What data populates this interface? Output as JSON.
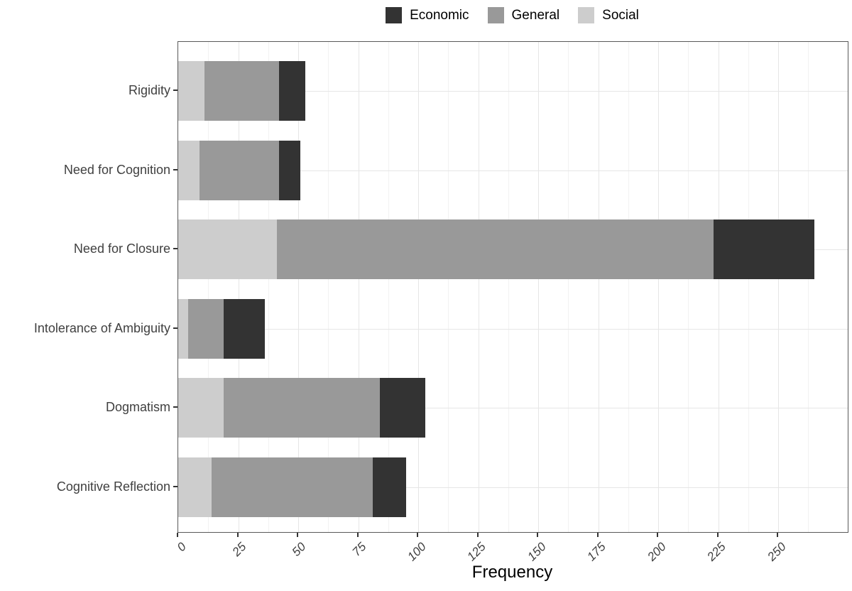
{
  "legend": {
    "items": [
      {
        "label": "Economic",
        "color": "#333333"
      },
      {
        "label": "General",
        "color": "#999999"
      },
      {
        "label": "Social",
        "color": "#cdcdcd"
      }
    ]
  },
  "chart_data": {
    "type": "bar",
    "orientation": "horizontal",
    "stacked": true,
    "title": "",
    "xlabel": "Frequency",
    "ylabel": "",
    "categories": [
      "Rigidity",
      "Need for Cognition",
      "Need for Closure",
      "Intolerance of Ambiguity",
      "Dogmatism",
      "Cognitive Reflection"
    ],
    "series": [
      {
        "name": "Social",
        "color": "#cdcdcd",
        "values": [
          11,
          9,
          41,
          4,
          19,
          14
        ]
      },
      {
        "name": "General",
        "color": "#999999",
        "values": [
          31,
          33,
          182,
          15,
          65,
          67
        ]
      },
      {
        "name": "Economic",
        "color": "#333333",
        "values": [
          11,
          9,
          42,
          17,
          19,
          14
        ]
      }
    ],
    "totals": [
      53,
      51,
      265,
      36,
      103,
      95
    ],
    "x_ticks": [
      0,
      25,
      50,
      75,
      100,
      125,
      150,
      175,
      200,
      225,
      250
    ],
    "x_minor_ticks": [
      12.5,
      37.5,
      62.5,
      87.5,
      112.5,
      137.5,
      162.5,
      187.5,
      212.5,
      237.5,
      262.5
    ],
    "xlim": [
      0,
      279
    ],
    "grid": true,
    "legend_position": "top",
    "colors": {
      "grid_major": "#e6e6e6",
      "grid_minor": "#f2f2f2",
      "panel_border": "#595959",
      "tick": "#333333",
      "axis_text": "#404040"
    }
  }
}
